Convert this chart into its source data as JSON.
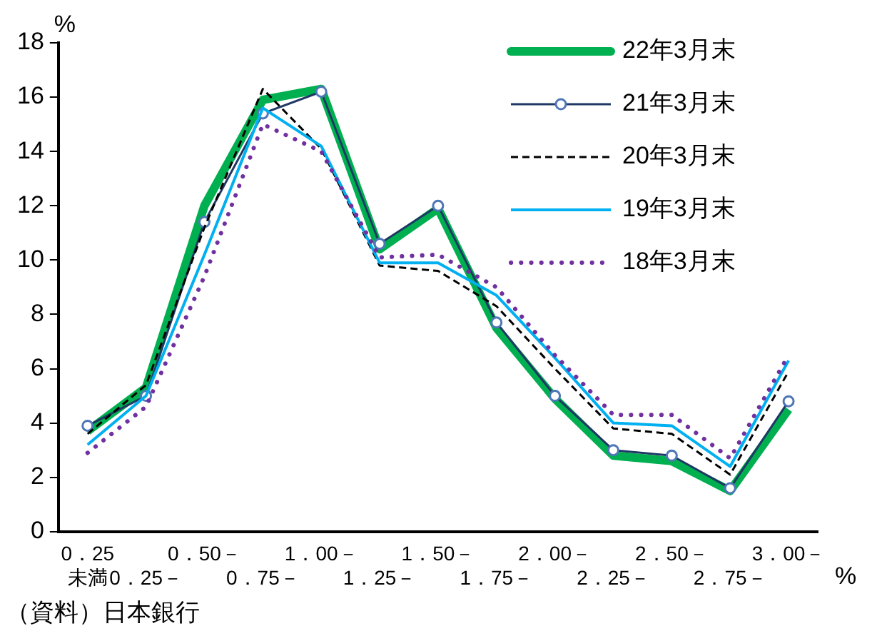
{
  "chart_data": {
    "type": "line",
    "xlabel": "%",
    "ylabel": "%",
    "annotations": [
      "（資料）日本銀行"
    ],
    "categories": [
      "0．25\n未満",
      "0．25－",
      "0．50－",
      "0．75－",
      "1．00－",
      "1．25－",
      "1．50－",
      "1．75－",
      "2．00－",
      "2．25－",
      "2．50－",
      "2．75－",
      "3．00－"
    ],
    "ylim": [
      0,
      18
    ],
    "yticks": [
      0,
      2,
      4,
      6,
      8,
      10,
      12,
      14,
      16,
      18
    ],
    "grid": false,
    "legend": "top right",
    "series": [
      {
        "name": "22年3月末",
        "color": "#00b050",
        "marker": "none",
        "line_style": "solid",
        "values": [
          3.7,
          5.3,
          12.0,
          15.9,
          16.3,
          10.4,
          11.9,
          7.5,
          4.9,
          2.8,
          2.6,
          1.5,
          4.5
        ]
      },
      {
        "name": "21年3月末",
        "color": "#1f3864",
        "marker": "circle",
        "line_style": "solid",
        "values": [
          3.9,
          5.0,
          11.4,
          15.4,
          16.2,
          10.6,
          12.0,
          7.7,
          5.0,
          3.0,
          2.8,
          1.6,
          4.8
        ]
      },
      {
        "name": "20年3月末",
        "color": "#000000",
        "marker": "none",
        "line_style": "dashed",
        "values": [
          3.6,
          5.4,
          11.2,
          16.3,
          14.1,
          9.8,
          9.6,
          8.3,
          6.0,
          3.8,
          3.6,
          2.1,
          5.9
        ]
      },
      {
        "name": "19年3月末",
        "color": "#00b0f0",
        "marker": "none",
        "line_style": "solid",
        "values": [
          3.2,
          5.0,
          10.2,
          15.6,
          14.2,
          9.9,
          9.9,
          8.7,
          6.4,
          4.0,
          3.9,
          2.4,
          6.3
        ]
      },
      {
        "name": "18年3月末",
        "color": "#7030a0",
        "marker": "none",
        "line_style": "dotted",
        "values": [
          2.9,
          4.6,
          9.4,
          15.0,
          14.0,
          10.1,
          10.2,
          9.0,
          6.5,
          4.3,
          4.3,
          2.7,
          6.5
        ]
      }
    ]
  }
}
